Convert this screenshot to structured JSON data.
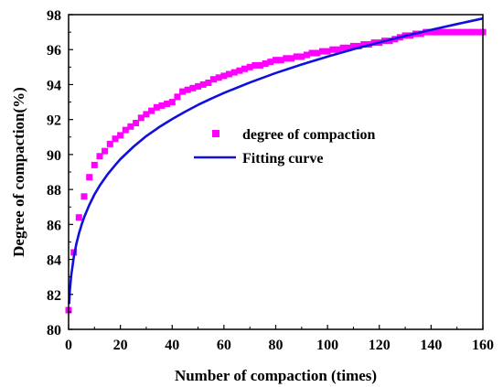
{
  "chart_data": {
    "type": "scatter",
    "xlabel": "Number of compaction (times)",
    "ylabel": "Degree of compaction(%)",
    "xlim": [
      0,
      160
    ],
    "ylim": [
      80,
      98
    ],
    "x_ticks": [
      "0",
      "20",
      "40",
      "60",
      "80",
      "100",
      "120",
      "140",
      "160"
    ],
    "y_ticks": [
      "80",
      "82",
      "84",
      "86",
      "88",
      "90",
      "92",
      "94",
      "96",
      "98"
    ],
    "grid": false,
    "legend_position": "center-right",
    "series": [
      {
        "name": "degree of compaction",
        "kind": "scatter",
        "marker": "square",
        "color": "#ff00ff",
        "x": [
          0,
          2,
          4,
          6,
          8,
          10,
          12,
          14,
          16,
          18,
          20,
          22,
          24,
          26,
          28,
          30,
          32,
          34,
          36,
          38,
          40,
          42,
          44,
          46,
          48,
          50,
          52,
          54,
          56,
          58,
          60,
          62,
          64,
          66,
          68,
          70,
          72,
          74,
          76,
          78,
          80,
          82,
          84,
          86,
          88,
          90,
          92,
          94,
          96,
          98,
          100,
          102,
          104,
          106,
          108,
          110,
          112,
          114,
          116,
          118,
          120,
          122,
          124,
          126,
          128,
          130,
          132,
          134,
          136,
          138,
          140,
          142,
          144,
          146,
          148,
          150,
          152,
          154,
          156,
          158,
          160
        ],
        "y": [
          81.1,
          84.4,
          86.4,
          87.6,
          88.7,
          89.4,
          89.9,
          90.2,
          90.6,
          90.9,
          91.1,
          91.4,
          91.6,
          91.8,
          92.1,
          92.3,
          92.5,
          92.7,
          92.8,
          92.9,
          93.0,
          93.3,
          93.6,
          93.7,
          93.8,
          93.9,
          94.0,
          94.1,
          94.3,
          94.4,
          94.5,
          94.6,
          94.7,
          94.8,
          94.9,
          95.0,
          95.1,
          95.1,
          95.2,
          95.3,
          95.4,
          95.4,
          95.5,
          95.5,
          95.6,
          95.6,
          95.7,
          95.8,
          95.8,
          95.9,
          95.9,
          96.0,
          96.0,
          96.1,
          96.1,
          96.2,
          96.2,
          96.3,
          96.3,
          96.4,
          96.4,
          96.5,
          96.5,
          96.6,
          96.7,
          96.8,
          96.8,
          96.9,
          96.9,
          97.0,
          97.0,
          97.0,
          97.0,
          97.0,
          97.0,
          97.0,
          97.0,
          97.0,
          97.0,
          97.0,
          97.0
        ]
      },
      {
        "name": "Fitting curve",
        "kind": "line",
        "color": "#1010dd",
        "x": [
          0.2,
          0.5,
          1,
          2,
          3,
          4,
          5,
          6,
          8,
          10,
          12,
          15,
          18,
          20,
          25,
          30,
          35,
          40,
          45,
          50,
          55,
          60,
          70,
          80,
          90,
          100,
          110,
          120,
          130,
          140,
          150,
          160
        ],
        "y": [
          81.45,
          82.23,
          83.06,
          84.13,
          84.89,
          85.48,
          85.98,
          86.41,
          87.12,
          87.72,
          88.22,
          88.86,
          89.4,
          89.73,
          90.44,
          91.05,
          91.57,
          92.03,
          92.45,
          92.84,
          93.19,
          93.52,
          94.12,
          94.66,
          95.15,
          95.6,
          96.02,
          96.41,
          96.78,
          97.13,
          97.46,
          97.78
        ]
      }
    ]
  }
}
